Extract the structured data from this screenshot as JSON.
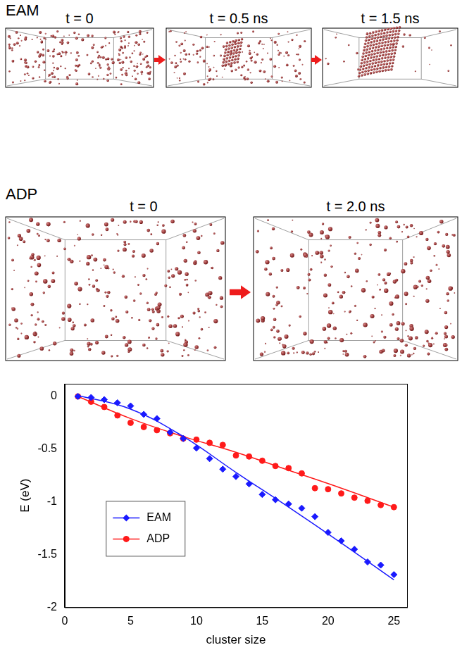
{
  "snapshots": [
    {
      "label": "EAM",
      "frames": [
        "t = 0",
        "t = 0.5 ns",
        "t = 1.5 ns"
      ]
    },
    {
      "label": "ADP",
      "frames": [
        "t = 0",
        "t = 2.0 ns"
      ]
    }
  ],
  "chart_data": {
    "type": "scatter",
    "x_label": "cluster size",
    "y_label": "E (eV)",
    "x": [
      1,
      2,
      3,
      4,
      5,
      6,
      7,
      8,
      9,
      10,
      11,
      12,
      13,
      14,
      15,
      16,
      17,
      18,
      19,
      20,
      21,
      22,
      23,
      24,
      25
    ],
    "series": [
      {
        "name": "EAM",
        "color": "#1a1aff",
        "marker": "diamond",
        "line_style": "solid",
        "values": [
          0,
          -0.01,
          -0.03,
          -0.06,
          -0.09,
          -0.17,
          -0.21,
          -0.34,
          -0.4,
          -0.49,
          -0.59,
          -0.69,
          -0.76,
          -0.83,
          -0.93,
          -0.98,
          -1.02,
          -1.06,
          -1.14,
          -1.29,
          -1.37,
          -1.45,
          -1.57,
          -1.6,
          -1.69
        ],
        "fit": {
          "x": [
            1,
            5,
            9,
            13,
            17,
            21,
            25
          ],
          "values": [
            0.01,
            -0.12,
            -0.38,
            -0.72,
            -1.05,
            -1.39,
            -1.74
          ]
        }
      },
      {
        "name": "ADP",
        "color": "#ff1a1a",
        "marker": "circle",
        "line_style": "solid",
        "values": [
          0,
          -0.05,
          -0.1,
          -0.18,
          -0.25,
          -0.29,
          -0.32,
          -0.35,
          -0.4,
          -0.41,
          -0.44,
          -0.46,
          -0.56,
          -0.57,
          -0.61,
          -0.66,
          -0.68,
          -0.73,
          -0.87,
          -0.88,
          -0.92,
          -0.96,
          -0.99,
          -1.03,
          -1.05
        ],
        "fit": {
          "x": [
            1,
            5,
            9,
            13,
            17,
            21,
            25
          ],
          "values": [
            0,
            -0.21,
            -0.38,
            -0.53,
            -0.7,
            -0.87,
            -1.05
          ]
        }
      }
    ],
    "xlim": [
      0,
      26
    ],
    "xticks": [
      0,
      5,
      10,
      15,
      20,
      25
    ],
    "ylim": [
      -2,
      0.12
    ],
    "yticks": [
      -2,
      -1.5,
      -1,
      -0.5,
      0
    ],
    "grid": false,
    "legend": "lower left"
  }
}
